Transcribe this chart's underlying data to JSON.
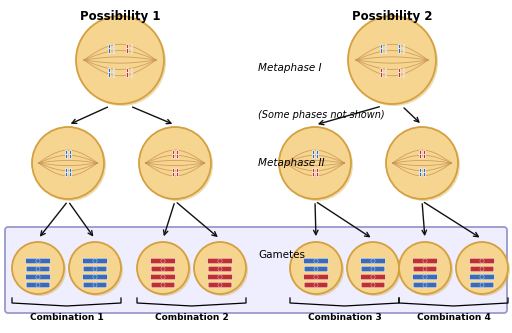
{
  "bg_color": "#ffffff",
  "cell_fill": "#F5D590",
  "cell_edge": "#D4A040",
  "cell_shadow": "#E8C070",
  "spindle_color": "#C89050",
  "blue_chr": "#3B6BB5",
  "red_chr": "#C03030",
  "arrow_color": "#111111",
  "box_fill": "#EEEEFF",
  "box_edge": "#9999CC",
  "title1": "Possibility 1",
  "title2": "Possibility 2",
  "label_metaphase1": "Metaphase I",
  "label_metaphase2": "Metaphase II",
  "label_phases": "(Some phases not shown)",
  "label_gametes": "Gametes",
  "combo_labels": [
    "Combination 1",
    "Combination 2",
    "Combination 3",
    "Combination 4"
  ],
  "figw": 5.12,
  "figh": 3.33,
  "dpi": 100
}
